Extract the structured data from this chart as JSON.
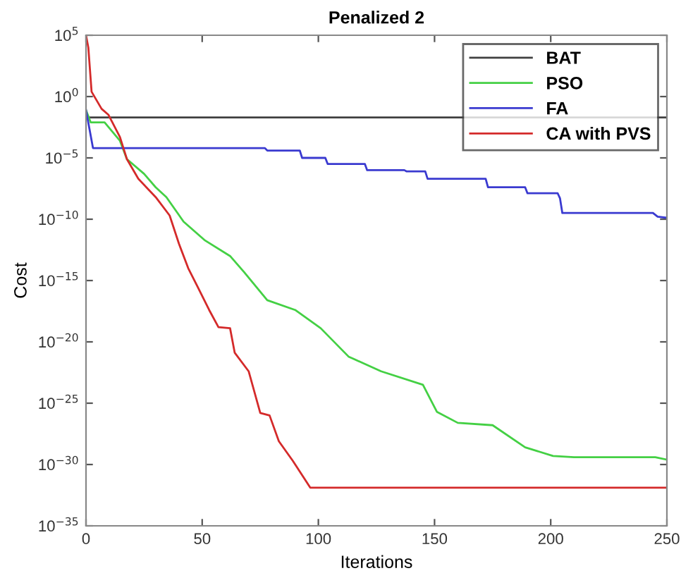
{
  "chart_data": {
    "type": "line",
    "title": "Penalized 2",
    "xlabel": "Iterations",
    "ylabel": "Cost",
    "log": "y",
    "grid": false,
    "legend": "top right",
    "xlim": [
      0,
      250
    ],
    "xticks": [
      0,
      50,
      100,
      150,
      200,
      250
    ],
    "ylim": [
      1e-35,
      100000.0
    ],
    "yticks": [
      {
        "value": 1e-35,
        "label": "10$^{−35}$"
      },
      {
        "value": 1e-30,
        "label": "10$^{−30}$"
      },
      {
        "value": 1e-25,
        "label": "10$^{−25}$"
      },
      {
        "value": 1e-20,
        "label": "10$^{−20}$"
      },
      {
        "value": 1e-15,
        "label": "10$^{−15}$"
      },
      {
        "value": 1e-10,
        "label": "10$^{−10}$"
      },
      {
        "value": 1e-05,
        "label": "10$^{−5}$"
      },
      {
        "value": 1,
        "label": "10$^{0}$"
      },
      {
        "value": 100000.0,
        "label": "10$^{5}$"
      }
    ],
    "series": [
      {
        "name": "BAT",
        "color": "#404040",
        "x": [
          1,
          250
        ],
        "values": [
          0.02,
          0.02
        ]
      },
      {
        "name": "PSO",
        "color": "#44d044",
        "x": [
          0,
          2,
          8,
          14.6,
          17.6,
          25,
          30,
          34.6,
          42,
          51,
          62,
          68,
          78,
          90,
          101,
          113,
          127,
          145,
          151,
          160,
          175,
          189,
          201,
          210,
          245,
          250
        ],
        "values": [
          0.079,
          0.0079,
          0.0079,
          0.00025,
          7.9e-06,
          5e-07,
          4e-08,
          6.3e-09,
          6.3e-11,
          2e-12,
          1e-13,
          5e-15,
          2.5e-17,
          4e-18,
          1.3e-19,
          6.3e-22,
          4e-23,
          3.2e-24,
          2e-26,
          2.5e-27,
          1.6e-27,
          2.5e-29,
          5e-30,
          4e-30,
          4e-30,
          2.5e-30
        ]
      },
      {
        "name": "FA",
        "color": "#3a3ad0",
        "x": [
          0,
          3,
          77,
          78,
          92,
          93,
          103,
          104,
          120,
          121,
          137,
          138,
          146,
          147,
          172,
          173,
          189,
          190,
          203,
          204,
          205,
          244,
          246,
          250
        ],
        "values": [
          0.079,
          6.3e-05,
          6.3e-05,
          4e-05,
          4e-05,
          1e-05,
          1e-05,
          3.2e-06,
          3.2e-06,
          1e-06,
          1e-06,
          7.9e-07,
          7.9e-07,
          2e-07,
          2e-07,
          4e-08,
          4e-08,
          1.3e-08,
          1.3e-08,
          5e-09,
          3.2e-10,
          3.2e-10,
          1.6e-10,
          1.3e-10
        ]
      },
      {
        "name": "CA with PVS",
        "color": "#d42a2a",
        "x": [
          0,
          1,
          2.4,
          6.7,
          9.7,
          14.6,
          17.6,
          22.5,
          30,
          36,
          40,
          44,
          48,
          53,
          57,
          62,
          64,
          70,
          75,
          79,
          83,
          89,
          96.5,
          250
        ],
        "values": [
          100000.0,
          10000.0,
          2.5,
          0.1,
          0.032,
          0.0005,
          7.9e-06,
          2e-07,
          6.3e-09,
          2e-10,
          1e-12,
          1e-14,
          3.2e-16,
          4e-18,
          1.6e-19,
          1.3e-19,
          1.3e-21,
          4e-23,
          1.6e-26,
          1e-26,
          7.9e-29,
          2e-30,
          1.3e-32,
          1.3e-32
        ]
      }
    ]
  }
}
